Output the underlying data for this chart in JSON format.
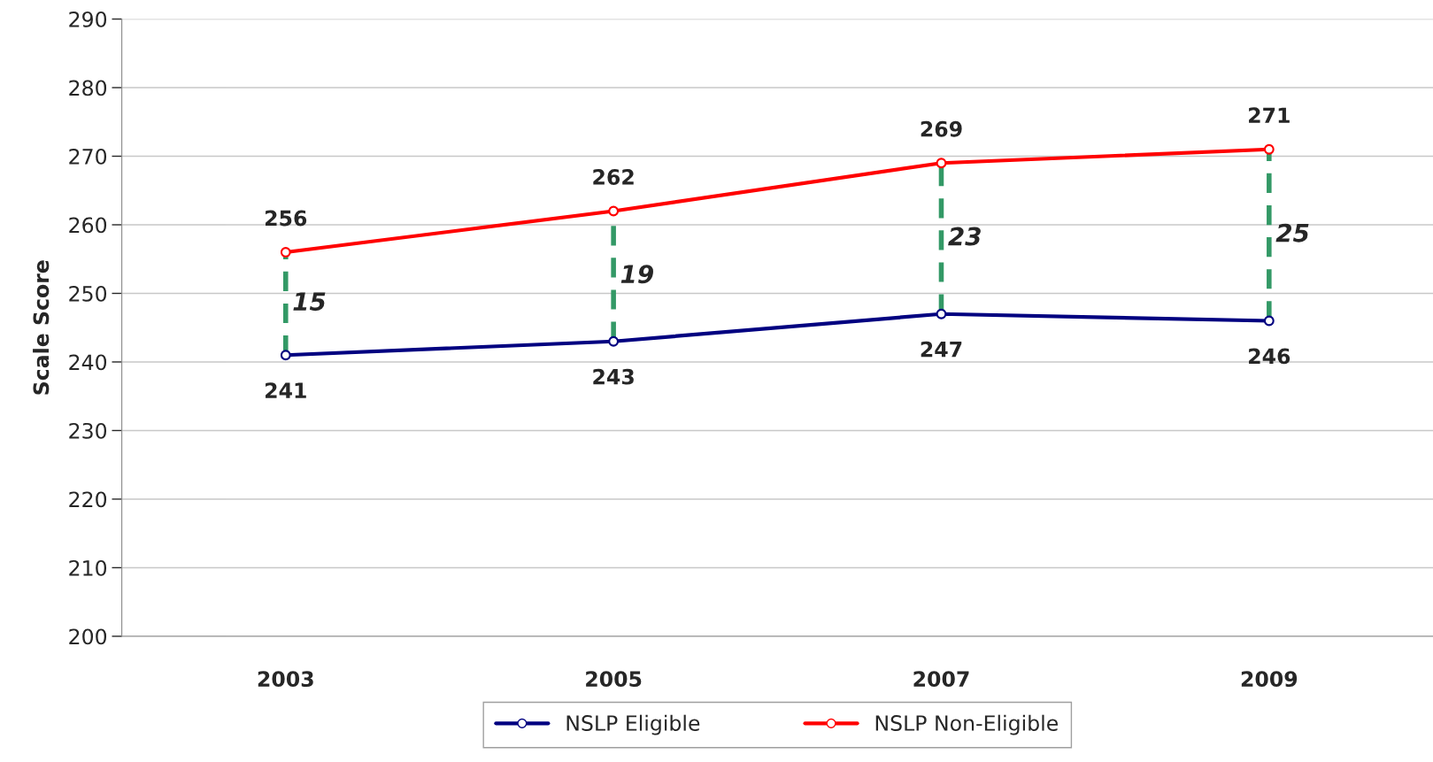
{
  "chart_data": {
    "type": "line",
    "ylabel": "Scale Score",
    "categories": [
      "2003",
      "2005",
      "2007",
      "2009"
    ],
    "series": [
      {
        "name": "NSLP Eligible",
        "color": "#000080",
        "values": [
          241,
          243,
          247,
          246
        ]
      },
      {
        "name": "NSLP Non-Eligible",
        "color": "#ff0000",
        "values": [
          256,
          262,
          269,
          271
        ]
      }
    ],
    "data_labels": true,
    "marker": "circle",
    "line_style": "solid",
    "ylim": [
      200,
      290
    ],
    "yticks": [
      200,
      210,
      220,
      230,
      240,
      250,
      260,
      270,
      280,
      290
    ],
    "grid": "y",
    "legend": "bottom",
    "annotations": [
      "15",
      "19",
      "23",
      "25"
    ]
  }
}
